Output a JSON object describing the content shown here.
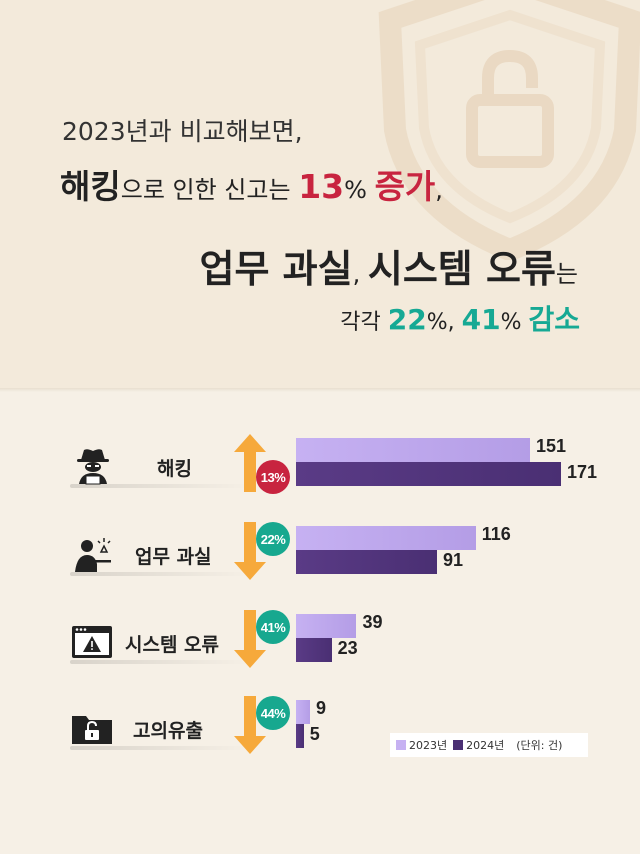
{
  "headline": {
    "line1": "2023년과 비교해보면,",
    "line2_a": "해킹",
    "line2_b": "으로 인한 신고는 ",
    "line2_c": "13",
    "line2_d": "% ",
    "line2_e": "증가",
    "line2_f": ",",
    "line3_a": "업무 과실",
    "line3_b": ", ",
    "line3_c": "시스템 오류",
    "line3_d": "는",
    "line4_a": "각각 ",
    "line4_b": "22",
    "line4_c": "%, ",
    "line4_d": "41",
    "line4_e": "% ",
    "line4_f": "감소"
  },
  "colors": {
    "red": "#c8243f",
    "teal": "#16a994",
    "bar_2023": "#c6b1f2",
    "bar_2024": "#4a2f73",
    "arrow": "#f6a93b"
  },
  "legend": {
    "series_2023": "2023년",
    "series_2024": "2024년",
    "unit": "(단위: 건)"
  },
  "chart_data": {
    "type": "bar",
    "orientation": "horizontal",
    "categories": [
      "해킹",
      "업무 과실",
      "시스템 오류",
      "고의유출"
    ],
    "series": [
      {
        "name": "2023년",
        "values": [
          151,
          116,
          39,
          9
        ]
      },
      {
        "name": "2024년",
        "values": [
          171,
          91,
          23,
          5
        ]
      }
    ],
    "changes": [
      {
        "label": "13%",
        "direction": "up"
      },
      {
        "label": "22%",
        "direction": "down"
      },
      {
        "label": "41%",
        "direction": "down"
      },
      {
        "label": "44%",
        "direction": "down"
      }
    ],
    "icons": [
      "hacker-icon",
      "worker-icon",
      "warning-window-icon",
      "folder-lock-icon"
    ],
    "unit": "(단위: 건)"
  }
}
